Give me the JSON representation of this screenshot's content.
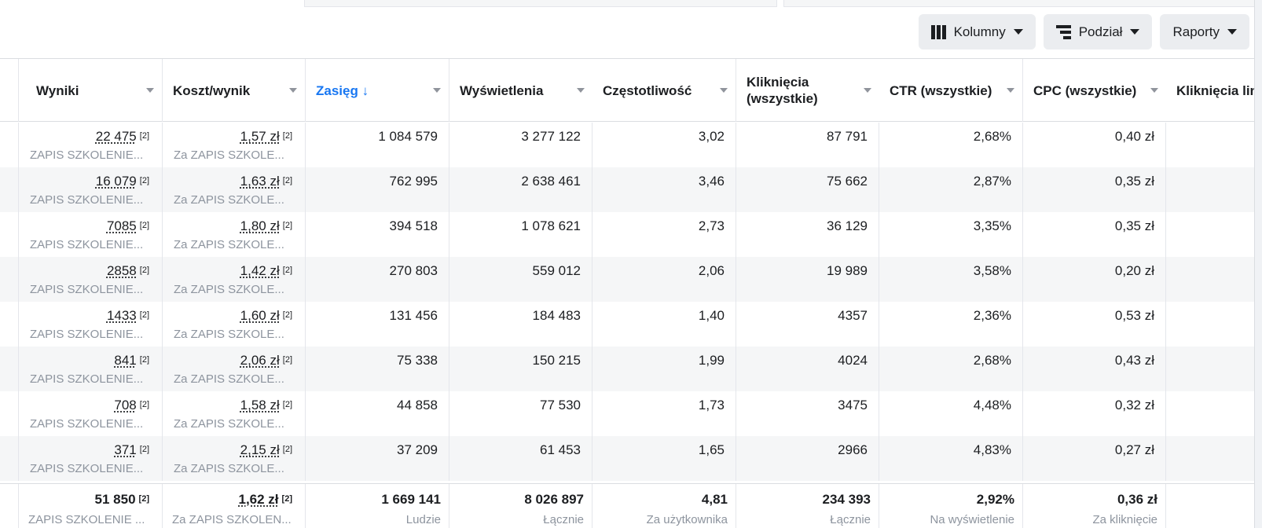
{
  "toolbar": {
    "columns_label": "Kolumny",
    "breakdown_label": "Podział",
    "reports_label": "Raporty"
  },
  "columns": [
    {
      "key": "results",
      "label": "Wyniki"
    },
    {
      "key": "cost_per_result",
      "label": "Koszt/wynik"
    },
    {
      "key": "reach",
      "label": "Zasięg ↓",
      "sorted": true
    },
    {
      "key": "impressions",
      "label": "Wyświetlenia"
    },
    {
      "key": "frequency",
      "label": "Częstotliwość"
    },
    {
      "key": "clicks_all_line1",
      "label": "Kliknięcia"
    },
    {
      "key": "clicks_all_line2",
      "label": "(wszystkie)"
    },
    {
      "key": "ctr_all",
      "label": "CTR (wszystkie)"
    },
    {
      "key": "cpc_all",
      "label": "CPC (wszystkie)"
    },
    {
      "key": "link_clicks",
      "label": "Kliknięcia linku"
    }
  ],
  "rows": [
    {
      "results": "22 475",
      "results_note": "[2]",
      "results_sub": "ZAPIS SZKOLENIE...",
      "cost": "1,57 zł",
      "cost_note": "[2]",
      "cost_sub": "Za ZAPIS SZKOLE...",
      "reach": "1 084 579",
      "impressions": "3 277 122",
      "frequency": "3,02",
      "clicks": "87 791",
      "ctr": "2,68%",
      "cpc": "0,40 zł"
    },
    {
      "results": "16 079",
      "results_note": "[2]",
      "results_sub": "ZAPIS SZKOLENIE...",
      "cost": "1,63 zł",
      "cost_note": "[2]",
      "cost_sub": "Za ZAPIS SZKOLE...",
      "reach": "762 995",
      "impressions": "2 638 461",
      "frequency": "3,46",
      "clicks": "75 662",
      "ctr": "2,87%",
      "cpc": "0,35 zł"
    },
    {
      "results": "7085",
      "results_note": "[2]",
      "results_sub": "ZAPIS SZKOLENIE...",
      "cost": "1,80 zł",
      "cost_note": "[2]",
      "cost_sub": "Za ZAPIS SZKOLE...",
      "reach": "394 518",
      "impressions": "1 078 621",
      "frequency": "2,73",
      "clicks": "36 129",
      "ctr": "3,35%",
      "cpc": "0,35 zł"
    },
    {
      "results": "2858",
      "results_note": "[2]",
      "results_sub": "ZAPIS SZKOLENIE...",
      "cost": "1,42 zł",
      "cost_note": "[2]",
      "cost_sub": "Za ZAPIS SZKOLE...",
      "reach": "270 803",
      "impressions": "559 012",
      "frequency": "2,06",
      "clicks": "19 989",
      "ctr": "3,58%",
      "cpc": "0,20 zł"
    },
    {
      "results": "1433",
      "results_note": "[2]",
      "results_sub": "ZAPIS SZKOLENIE...",
      "cost": "1,60 zł",
      "cost_note": "[2]",
      "cost_sub": "Za ZAPIS SZKOLE...",
      "reach": "131 456",
      "impressions": "184 483",
      "frequency": "1,40",
      "clicks": "4357",
      "ctr": "2,36%",
      "cpc": "0,53 zł"
    },
    {
      "results": "841",
      "results_note": "[2]",
      "results_sub": "ZAPIS SZKOLENIE...",
      "cost": "2,06 zł",
      "cost_note": "[2]",
      "cost_sub": "Za ZAPIS SZKOLE...",
      "reach": "75 338",
      "impressions": "150 215",
      "frequency": "1,99",
      "clicks": "4024",
      "ctr": "2,68%",
      "cpc": "0,43 zł"
    },
    {
      "results": "708",
      "results_note": "[2]",
      "results_sub": "ZAPIS SZKOLENIE...",
      "cost": "1,58 zł",
      "cost_note": "[2]",
      "cost_sub": "Za ZAPIS SZKOLE...",
      "reach": "44 858",
      "impressions": "77 530",
      "frequency": "1,73",
      "clicks": "3475",
      "ctr": "4,48%",
      "cpc": "0,32 zł"
    },
    {
      "results": "371",
      "results_note": "[2]",
      "results_sub": "ZAPIS SZKOLENIE...",
      "cost": "2,15 zł",
      "cost_note": "[2]",
      "cost_sub": "Za ZAPIS SZKOLE...",
      "reach": "37 209",
      "impressions": "61 453",
      "frequency": "1,65",
      "clicks": "2966",
      "ctr": "4,83%",
      "cpc": "0,27 zł"
    }
  ],
  "totals": {
    "results": "51 850",
    "results_note": "[2]",
    "results_sub": "ZAPIS SZKOLENIE ...",
    "cost": "1,62 zł",
    "cost_note": "[2]",
    "cost_sub": "Za ZAPIS SZKOLEN...",
    "reach": "1 669 141",
    "reach_sub": "Ludzie",
    "impressions": "8 026 897",
    "impressions_sub": "Łącznie",
    "frequency": "4,81",
    "frequency_sub": "Za użytkownika",
    "clicks": "234 393",
    "clicks_sub": "Łącznie",
    "ctr": "2,92%",
    "ctr_sub": "Na wyświetlenie",
    "cpc": "0,36 zł",
    "cpc_sub": "Za kliknięcie"
  },
  "colors": {
    "accent": "#1877f2",
    "muted": "#8d949e",
    "alt_row": "#f5f6f7"
  }
}
